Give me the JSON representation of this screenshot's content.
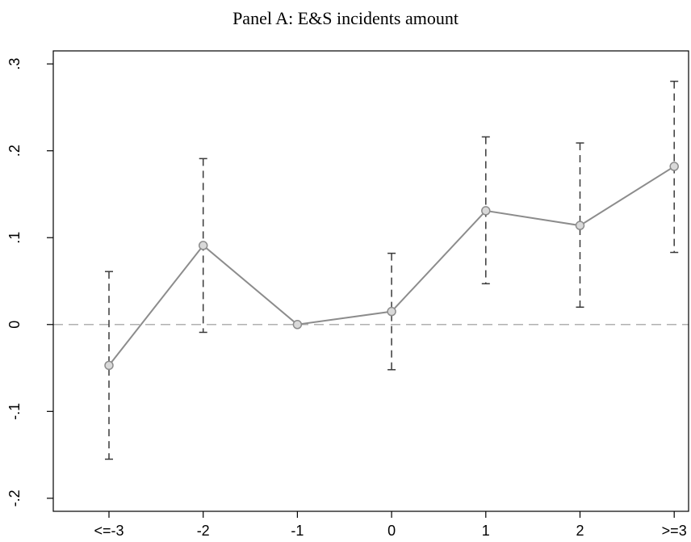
{
  "title": "Panel A: E&S incidents amount",
  "chart_data": {
    "type": "line",
    "title": "Panel A: E&S incidents amount",
    "xlabel": "",
    "ylabel": "",
    "categories": [
      "<=-3",
      "-2",
      "-1",
      "0",
      "1",
      "2",
      ">=3"
    ],
    "series": [
      {
        "values": [
          -0.047,
          0.091,
          0.0,
          0.015,
          0.131,
          0.114,
          0.182
        ],
        "ci_lower": [
          -0.155,
          -0.009,
          0.0,
          -0.052,
          0.047,
          0.02,
          0.083
        ],
        "ci_upper": [
          0.061,
          0.191,
          0.0,
          0.082,
          0.216,
          0.209,
          0.28
        ]
      }
    ],
    "ylim": [
      -0.215,
      0.315
    ],
    "yticks": [
      -0.2,
      -0.1,
      0,
      0.1,
      0.2,
      0.3
    ],
    "ytick_labels": [
      "-.2",
      "-.1",
      "0",
      ".1",
      ".2",
      ".3"
    ],
    "reference_line_y": 0,
    "grid": false,
    "colors": {
      "line": "#8c8c8c",
      "marker": "#8c8c8c",
      "error_bar": "#3a3a3a",
      "reference_line": "#b0b0b0",
      "axis": "#000000"
    }
  }
}
